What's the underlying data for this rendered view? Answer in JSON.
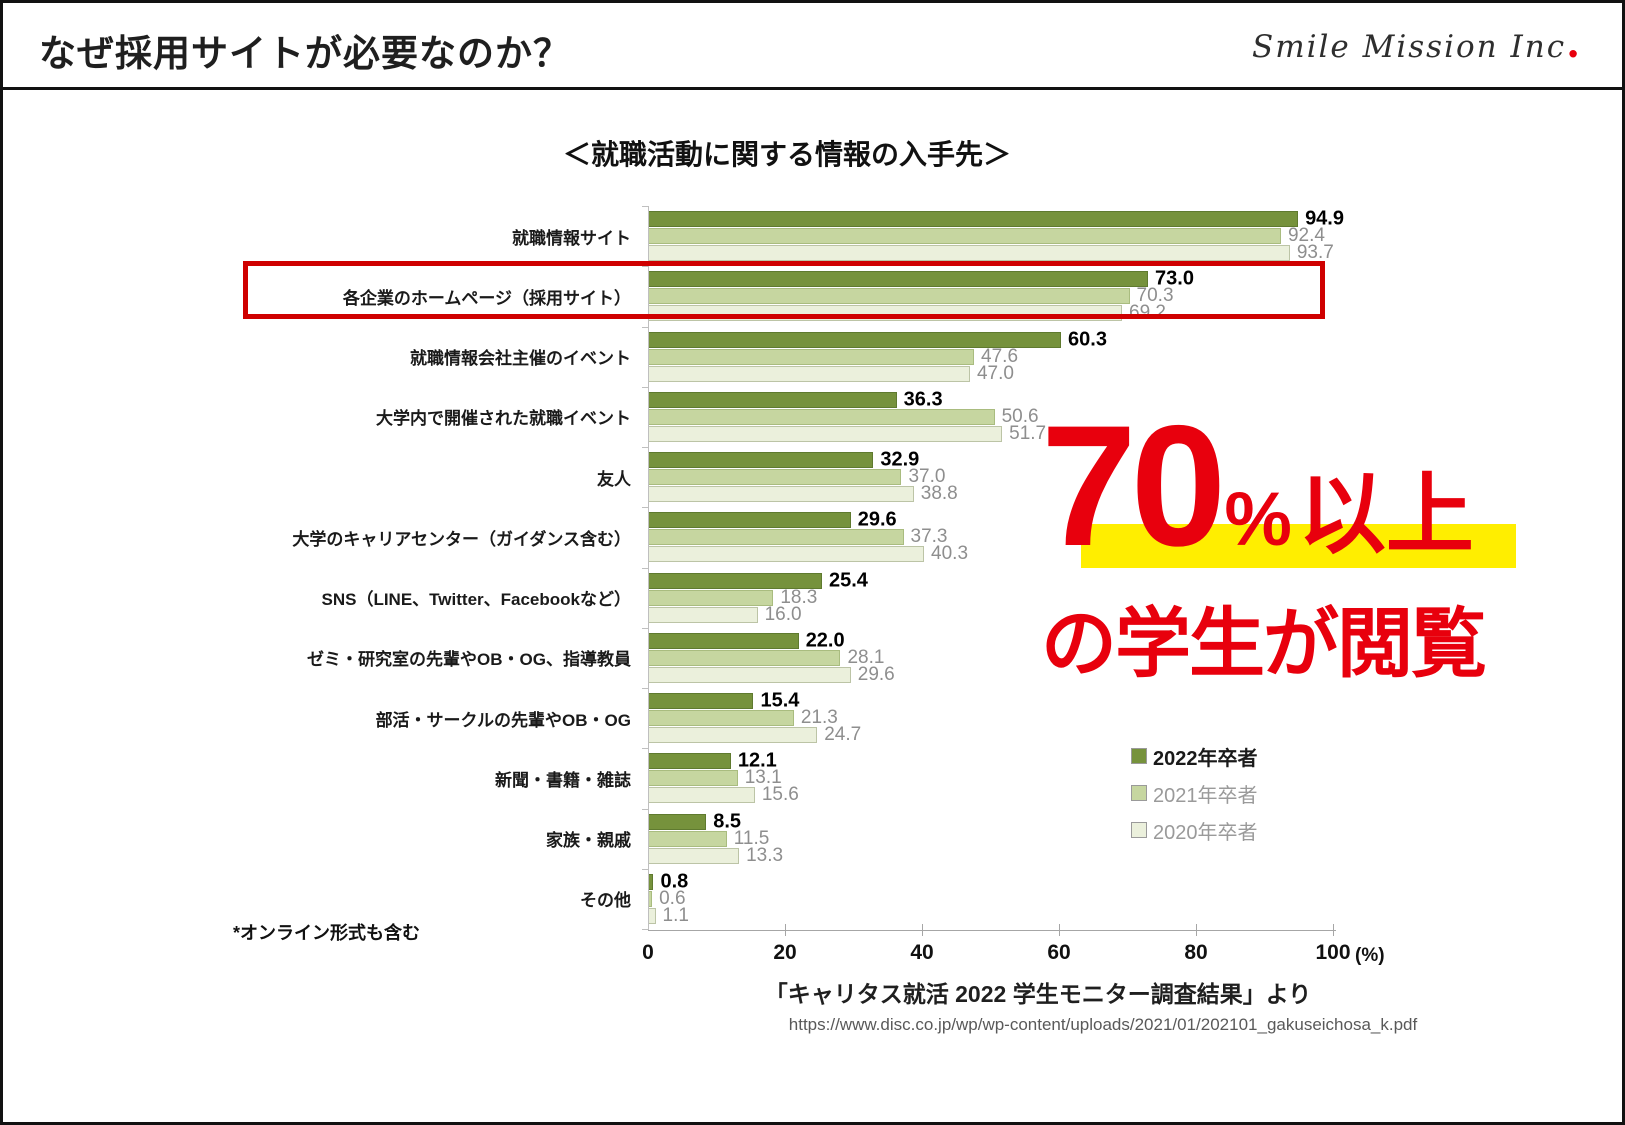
{
  "header": {
    "title": "なぜ採用サイトが必要なのか？",
    "logo_text": "Smile Mission Inc",
    "logo_dot": "."
  },
  "chart_data": {
    "type": "bar",
    "orientation": "horizontal",
    "title": "＜就職活動に関する情報の入手先＞",
    "categories": [
      "就職情報サイト",
      "各企業のホームページ（採用サイト）",
      "就職情報会社主催のイベント",
      "大学内で開催された就職イベント",
      "友人",
      "大学のキャリアセンター（ガイダンス含む）",
      "SNS（LINE、Twitter、Facebookなど）",
      "ゼミ・研究室の先輩やOB・OG、指導教員",
      "部活・サークルの先輩やOB・OG",
      "新聞・書籍・雑誌",
      "家族・親戚",
      "その他"
    ],
    "series": [
      {
        "name": "2022年卒者",
        "color": "#76923C",
        "border_color": "#5f7a2f",
        "label_class": "s0",
        "legend_text_color": "#1a1a1a",
        "values": [
          94.9,
          73.0,
          60.3,
          36.3,
          32.9,
          29.6,
          25.4,
          22.0,
          15.4,
          12.1,
          8.5,
          0.8
        ]
      },
      {
        "name": "2021年卒者",
        "color": "#C6D6A0",
        "border_color": "#a9bc7f",
        "label_class": "s1",
        "legend_text_color": "#9a9a9a",
        "values": [
          92.4,
          70.3,
          47.6,
          50.6,
          37.0,
          37.3,
          18.3,
          28.1,
          21.3,
          13.1,
          11.5,
          0.6
        ]
      },
      {
        "name": "2020年卒者",
        "color": "#EBF0DC",
        "border_color": "#bcc4a6",
        "label_class": "s2",
        "legend_text_color": "#9a9a9a",
        "values": [
          93.7,
          69.2,
          47.0,
          51.7,
          38.8,
          40.3,
          16.0,
          29.6,
          24.7,
          15.6,
          13.3,
          1.1
        ]
      }
    ],
    "xlim": [
      0,
      100
    ],
    "x_ticks": [
      0,
      20,
      40,
      60,
      80,
      100
    ],
    "x_unit": "(%)",
    "grid": false,
    "legend_position": "right-bottom",
    "highlighted_category_index": 1
  },
  "note": "*オンライン形式も含む",
  "callout": {
    "number": "70",
    "percent": "%",
    "suffix": "以上",
    "line2": "の学生が閲覧",
    "text_color": "#e8000d",
    "highlight_color": "#ffee00"
  },
  "source": {
    "line1": "「キャリタス就活 2022 学生モニター調査結果」より",
    "line2": "https://www.disc.co.jp/wp/wp-content/uploads/2021/01/202101_gakuseichosa_k.pdf"
  },
  "colors": {
    "highlight_box": "#cf0000"
  }
}
